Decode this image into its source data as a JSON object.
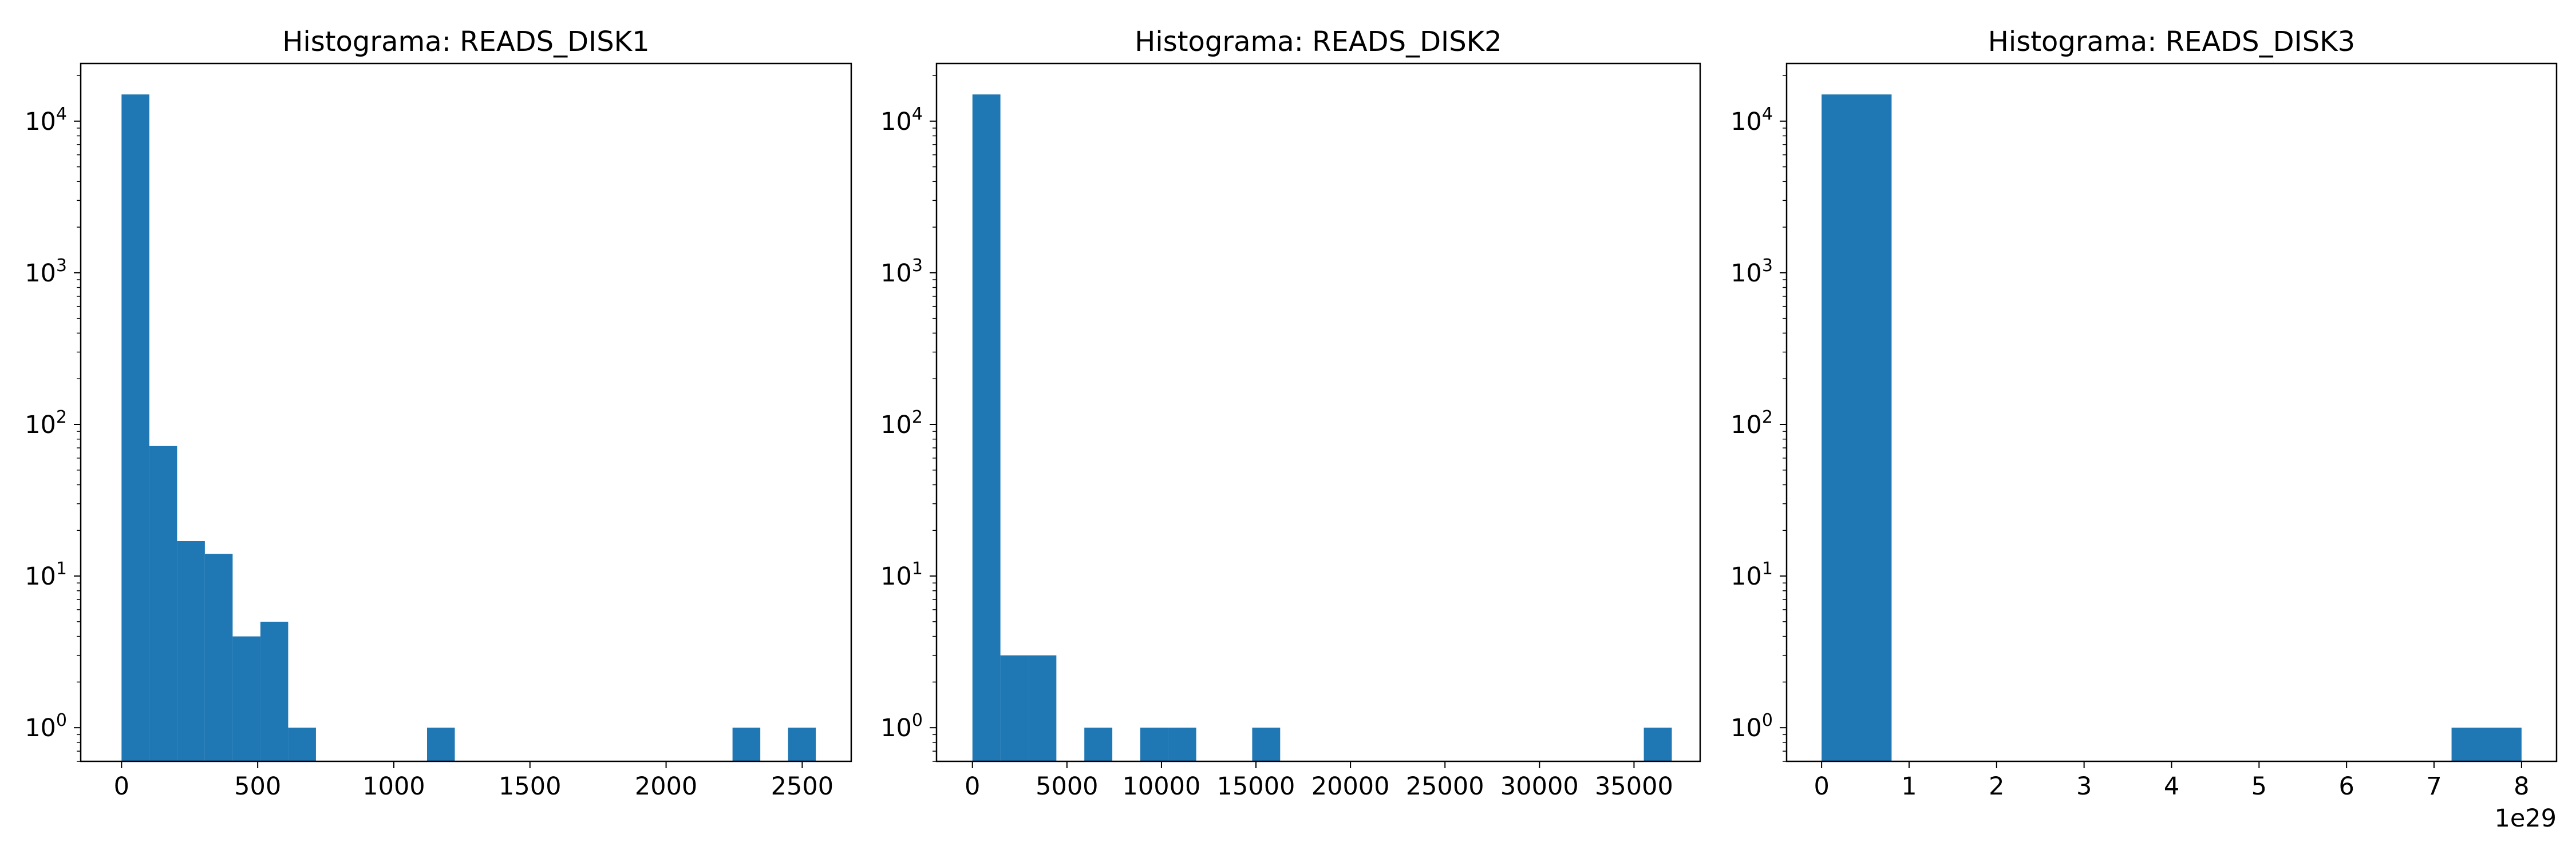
{
  "figure": {
    "background": "#ffffff"
  },
  "style": {
    "bar_color": "#1f77b4",
    "axis_color": "#000000"
  },
  "chart_data": [
    {
      "type": "bar",
      "title": "Histograma: READS_DISK1",
      "xlabel": "",
      "ylabel": "",
      "xscale": "linear",
      "yscale": "log",
      "xlim": [
        -150,
        2680
      ],
      "ylim": [
        0.6,
        24000
      ],
      "xticks": [
        0,
        500,
        1000,
        1500,
        2000,
        2500
      ],
      "xtick_labels": [
        "0",
        "500",
        "1000",
        "1500",
        "2000",
        "2500"
      ],
      "yticks": [
        1,
        10,
        100,
        1000,
        10000
      ],
      "ytick_exponents": [
        "0",
        "1",
        "2",
        "3",
        "4"
      ],
      "offset_text": "",
      "bin_edges": [
        0,
        102,
        204,
        306,
        408,
        510,
        612,
        714,
        816,
        918,
        1020,
        1122,
        1224,
        1326,
        1428,
        1530,
        1632,
        1734,
        1836,
        1938,
        2040,
        2142,
        2244,
        2346,
        2448,
        2550
      ],
      "counts": [
        15000,
        72,
        17,
        14,
        4,
        5,
        1,
        0,
        0,
        0,
        0,
        1,
        0,
        0,
        0,
        0,
        0,
        0,
        0,
        0,
        0,
        0,
        1,
        0,
        1
      ]
    },
    {
      "type": "bar",
      "title": "Histograma: READS_DISK2",
      "xlabel": "",
      "ylabel": "",
      "xscale": "linear",
      "yscale": "log",
      "xlim": [
        -1900,
        38500
      ],
      "ylim": [
        0.6,
        24000
      ],
      "xticks": [
        0,
        5000,
        10000,
        15000,
        20000,
        25000,
        30000,
        35000
      ],
      "xtick_labels": [
        "0",
        "5000",
        "10000",
        "15000",
        "20000",
        "25000",
        "30000",
        "35000"
      ],
      "yticks": [
        1,
        10,
        100,
        1000,
        10000
      ],
      "ytick_exponents": [
        "0",
        "1",
        "2",
        "3",
        "4"
      ],
      "offset_text": "",
      "bin_edges": [
        0,
        1480,
        2960,
        4440,
        5920,
        7400,
        8880,
        10360,
        11840,
        13320,
        14800,
        16280,
        17760,
        19240,
        20720,
        22200,
        23680,
        25160,
        26640,
        28120,
        29600,
        31080,
        32560,
        34040,
        35520,
        37000
      ],
      "counts": [
        15000,
        3,
        3,
        0,
        1,
        0,
        1,
        1,
        0,
        0,
        1,
        0,
        0,
        0,
        0,
        0,
        0,
        0,
        0,
        0,
        0,
        0,
        0,
        0,
        1
      ]
    },
    {
      "type": "bar",
      "title": "Histograma: READS_DISK3",
      "xlabel": "",
      "ylabel": "",
      "xscale": "linear",
      "yscale": "log",
      "xlim": [
        -0.4,
        8.4
      ],
      "ylim": [
        0.6,
        24000
      ],
      "xticks": [
        0,
        1,
        2,
        3,
        4,
        5,
        6,
        7,
        8
      ],
      "xtick_labels": [
        "0",
        "1",
        "2",
        "3",
        "4",
        "5",
        "6",
        "7",
        "8"
      ],
      "yticks": [
        1,
        10,
        100,
        1000,
        10000
      ],
      "ytick_exponents": [
        "0",
        "1",
        "2",
        "3",
        "4"
      ],
      "offset_text": "1e29",
      "bin_edges": [
        0,
        0.8,
        1.6,
        2.4,
        3.2,
        4.0,
        4.8,
        5.6,
        6.4,
        7.2,
        8.0
      ],
      "counts": [
        15000,
        0,
        0,
        0,
        0,
        0,
        0,
        0,
        0,
        1
      ]
    }
  ]
}
